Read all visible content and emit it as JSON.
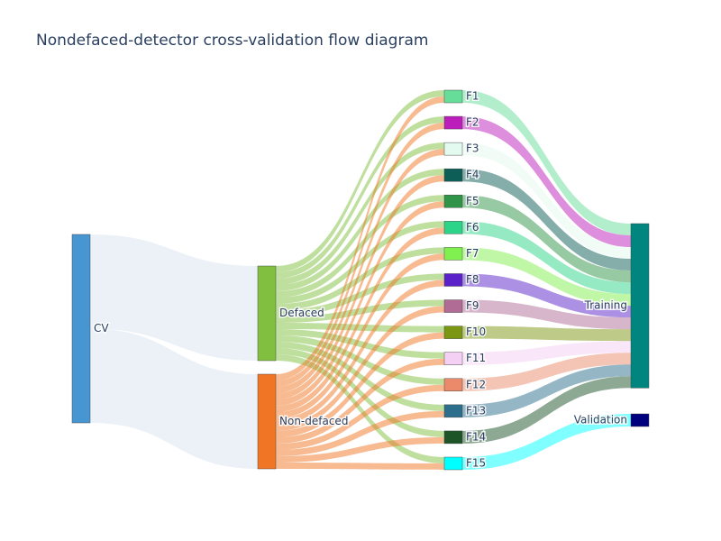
{
  "chart_data": {
    "type": "sankey",
    "title": "Nondefaced-detector cross-validation flow diagram",
    "nodes": [
      {
        "id": "CV",
        "label": "CV",
        "color": "#4795d1",
        "column": 0
      },
      {
        "id": "Defaced",
        "label": "Defaced",
        "color": "#80bf3f",
        "column": 1
      },
      {
        "id": "Non-defaced",
        "label": "Non-defaced",
        "color": "#f07524",
        "column": 1
      },
      {
        "id": "F1",
        "label": "F1",
        "color": "#66dd99",
        "column": 2
      },
      {
        "id": "F2",
        "label": "F2",
        "color": "#bb1ebb",
        "column": 2
      },
      {
        "id": "F3",
        "label": "F3",
        "color": "#e3faf0",
        "column": 2
      },
      {
        "id": "F4",
        "label": "F4",
        "color": "#0c5e57",
        "column": 2
      },
      {
        "id": "F5",
        "label": "F5",
        "color": "#2f9447",
        "column": 2
      },
      {
        "id": "F6",
        "label": "F6",
        "color": "#2bd488",
        "column": 2
      },
      {
        "id": "F7",
        "label": "F7",
        "color": "#7ff050",
        "column": 2
      },
      {
        "id": "F8",
        "label": "F8",
        "color": "#5a22c8",
        "column": 2
      },
      {
        "id": "F9",
        "label": "F9",
        "color": "#b06c95",
        "column": 2
      },
      {
        "id": "F10",
        "label": "F10",
        "color": "#7b9612",
        "column": 2
      },
      {
        "id": "F11",
        "label": "F11",
        "color": "#f4d0f4",
        "column": 2
      },
      {
        "id": "F12",
        "label": "F12",
        "color": "#ea8a6a",
        "column": 2
      },
      {
        "id": "F13",
        "label": "F13",
        "color": "#2c6e8c",
        "column": 2
      },
      {
        "id": "F14",
        "label": "F14",
        "color": "#1d5427",
        "column": 2
      },
      {
        "id": "F15",
        "label": "F15",
        "color": "#00ffff",
        "column": 2
      },
      {
        "id": "Training",
        "label": "Training",
        "color": "#00857f",
        "column": 3
      },
      {
        "id": "Validation",
        "label": "Validation",
        "color": "#00007f",
        "column": 3
      }
    ],
    "links": [
      {
        "source": "CV",
        "target": "Defaced",
        "value": 15,
        "color": "rgba(210,225,238,0.45)"
      },
      {
        "source": "CV",
        "target": "Non-defaced",
        "value": 15,
        "color": "rgba(210,225,238,0.45)"
      },
      {
        "source": "Defaced",
        "target": "F1",
        "value": 1,
        "color": "rgba(128,191,63,0.5)"
      },
      {
        "source": "Defaced",
        "target": "F2",
        "value": 1,
        "color": "rgba(128,191,63,0.5)"
      },
      {
        "source": "Defaced",
        "target": "F3",
        "value": 1,
        "color": "rgba(128,191,63,0.5)"
      },
      {
        "source": "Defaced",
        "target": "F4",
        "value": 1,
        "color": "rgba(128,191,63,0.5)"
      },
      {
        "source": "Defaced",
        "target": "F5",
        "value": 1,
        "color": "rgba(128,191,63,0.5)"
      },
      {
        "source": "Defaced",
        "target": "F6",
        "value": 1,
        "color": "rgba(128,191,63,0.5)"
      },
      {
        "source": "Defaced",
        "target": "F7",
        "value": 1,
        "color": "rgba(128,191,63,0.5)"
      },
      {
        "source": "Defaced",
        "target": "F8",
        "value": 1,
        "color": "rgba(128,191,63,0.5)"
      },
      {
        "source": "Defaced",
        "target": "F9",
        "value": 1,
        "color": "rgba(128,191,63,0.5)"
      },
      {
        "source": "Defaced",
        "target": "F10",
        "value": 1,
        "color": "rgba(128,191,63,0.5)"
      },
      {
        "source": "Defaced",
        "target": "F11",
        "value": 1,
        "color": "rgba(128,191,63,0.5)"
      },
      {
        "source": "Defaced",
        "target": "F12",
        "value": 1,
        "color": "rgba(128,191,63,0.5)"
      },
      {
        "source": "Defaced",
        "target": "F13",
        "value": 1,
        "color": "rgba(128,191,63,0.5)"
      },
      {
        "source": "Defaced",
        "target": "F14",
        "value": 1,
        "color": "rgba(128,191,63,0.5)"
      },
      {
        "source": "Defaced",
        "target": "F15",
        "value": 1,
        "color": "rgba(128,191,63,0.5)"
      },
      {
        "source": "Non-defaced",
        "target": "F1",
        "value": 1,
        "color": "rgba(240,117,36,0.5)"
      },
      {
        "source": "Non-defaced",
        "target": "F2",
        "value": 1,
        "color": "rgba(240,117,36,0.5)"
      },
      {
        "source": "Non-defaced",
        "target": "F3",
        "value": 1,
        "color": "rgba(240,117,36,0.5)"
      },
      {
        "source": "Non-defaced",
        "target": "F4",
        "value": 1,
        "color": "rgba(240,117,36,0.5)"
      },
      {
        "source": "Non-defaced",
        "target": "F5",
        "value": 1,
        "color": "rgba(240,117,36,0.5)"
      },
      {
        "source": "Non-defaced",
        "target": "F6",
        "value": 1,
        "color": "rgba(240,117,36,0.5)"
      },
      {
        "source": "Non-defaced",
        "target": "F7",
        "value": 1,
        "color": "rgba(240,117,36,0.5)"
      },
      {
        "source": "Non-defaced",
        "target": "F8",
        "value": 1,
        "color": "rgba(240,117,36,0.5)"
      },
      {
        "source": "Non-defaced",
        "target": "F9",
        "value": 1,
        "color": "rgba(240,117,36,0.5)"
      },
      {
        "source": "Non-defaced",
        "target": "F10",
        "value": 1,
        "color": "rgba(240,117,36,0.5)"
      },
      {
        "source": "Non-defaced",
        "target": "F11",
        "value": 1,
        "color": "rgba(240,117,36,0.5)"
      },
      {
        "source": "Non-defaced",
        "target": "F12",
        "value": 1,
        "color": "rgba(240,117,36,0.5)"
      },
      {
        "source": "Non-defaced",
        "target": "F13",
        "value": 1,
        "color": "rgba(240,117,36,0.5)"
      },
      {
        "source": "Non-defaced",
        "target": "F14",
        "value": 1,
        "color": "rgba(240,117,36,0.5)"
      },
      {
        "source": "Non-defaced",
        "target": "F15",
        "value": 1,
        "color": "rgba(240,117,36,0.5)"
      },
      {
        "source": "F1",
        "target": "Training",
        "value": 2,
        "color": "rgba(102,221,153,0.5)"
      },
      {
        "source": "F2",
        "target": "Training",
        "value": 2,
        "color": "rgba(187,30,187,0.5)"
      },
      {
        "source": "F3",
        "target": "Training",
        "value": 2,
        "color": "rgba(227,250,240,0.5)"
      },
      {
        "source": "F4",
        "target": "Training",
        "value": 2,
        "color": "rgba(12,94,87,0.5)"
      },
      {
        "source": "F5",
        "target": "Training",
        "value": 2,
        "color": "rgba(47,148,71,0.5)"
      },
      {
        "source": "F6",
        "target": "Training",
        "value": 2,
        "color": "rgba(43,212,136,0.5)"
      },
      {
        "source": "F7",
        "target": "Training",
        "value": 2,
        "color": "rgba(127,240,80,0.5)"
      },
      {
        "source": "F8",
        "target": "Training",
        "value": 2,
        "color": "rgba(90,34,200,0.5)"
      },
      {
        "source": "F9",
        "target": "Training",
        "value": 2,
        "color": "rgba(176,108,149,0.5)"
      },
      {
        "source": "F10",
        "target": "Training",
        "value": 2,
        "color": "rgba(123,150,18,0.5)"
      },
      {
        "source": "F11",
        "target": "Training",
        "value": 2,
        "color": "rgba(244,208,244,0.5)"
      },
      {
        "source": "F12",
        "target": "Training",
        "value": 2,
        "color": "rgba(234,138,106,0.5)"
      },
      {
        "source": "F13",
        "target": "Training",
        "value": 2,
        "color": "rgba(44,110,140,0.5)"
      },
      {
        "source": "F14",
        "target": "Training",
        "value": 2,
        "color": "rgba(29,84,39,0.5)"
      },
      {
        "source": "F15",
        "target": "Validation",
        "value": 2,
        "color": "rgba(0,255,255,0.5)"
      }
    ]
  }
}
